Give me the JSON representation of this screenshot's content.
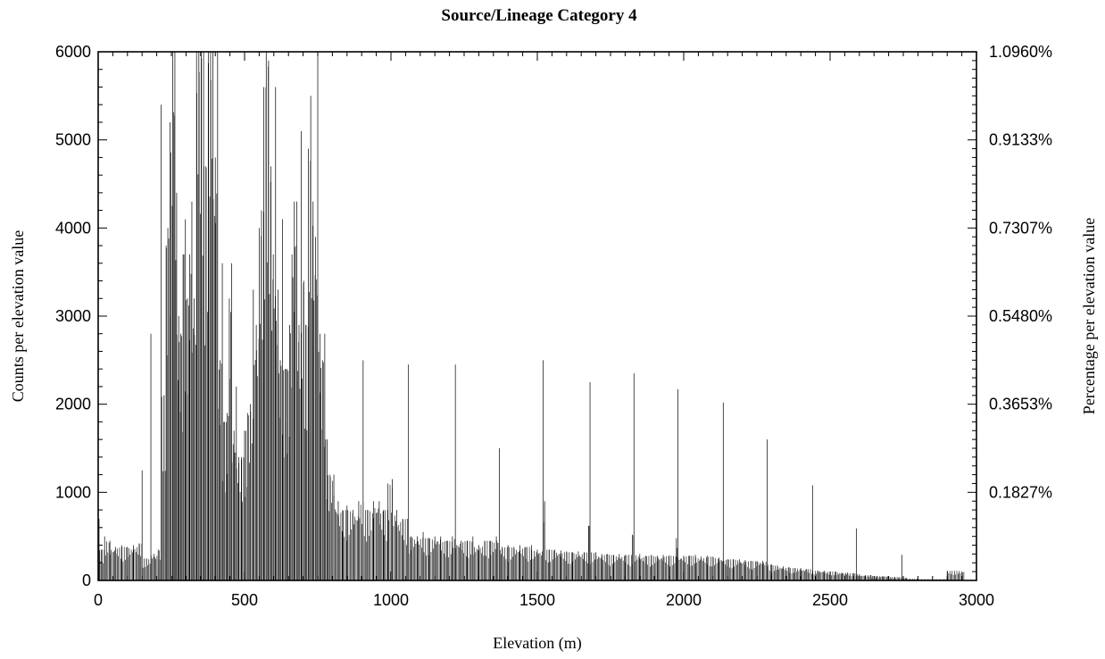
{
  "chart_data": {
    "type": "bar",
    "title": "Source/Lineage Category 4",
    "xlabel": "Elevation (m)",
    "ylabel": "Counts per elevation value",
    "y2label": "Percentage per elevation value",
    "xlim": [
      0,
      3000
    ],
    "ylim": [
      0,
      6000
    ],
    "x_ticks": [
      "0",
      "500",
      "1000",
      "1500",
      "2000",
      "2500",
      "3000"
    ],
    "y_ticks": [
      "0",
      "1000",
      "2000",
      "3000",
      "4000",
      "5000",
      "6000"
    ],
    "y2_ticks": [
      "0.1827%",
      "0.3653%",
      "0.5480%",
      "0.7307%",
      "0.9133%",
      "1.0960%"
    ],
    "grid": false,
    "legend": "none",
    "bar_color": "#000000",
    "note": "Approximate histogram: counts per 1 m elevation value, only salient bars listed, remaining low background bars summarised",
    "series": [
      {
        "values": [
          [
            3,
            700
          ],
          [
            10,
            350
          ],
          [
            22,
            500
          ],
          [
            40,
            450
          ],
          [
            60,
            380
          ],
          [
            80,
            400
          ],
          [
            100,
            380
          ],
          [
            120,
            400
          ],
          [
            140,
            420
          ],
          [
            150,
            1250
          ],
          [
            165,
            250
          ],
          [
            180,
            2800
          ],
          [
            190,
            300
          ],
          [
            205,
            350
          ],
          [
            215,
            5400
          ],
          [
            225,
            2100
          ],
          [
            232,
            3800
          ],
          [
            238,
            4000
          ],
          [
            245,
            5200
          ],
          [
            255,
            6000
          ],
          [
            262,
            6000
          ],
          [
            268,
            4400
          ],
          [
            275,
            3000
          ],
          [
            282,
            2800
          ],
          [
            290,
            3700
          ],
          [
            298,
            4100
          ],
          [
            305,
            3200
          ],
          [
            312,
            3700
          ],
          [
            320,
            4300
          ],
          [
            328,
            3200
          ],
          [
            336,
            6000
          ],
          [
            344,
            6000
          ],
          [
            352,
            6000
          ],
          [
            360,
            6000
          ],
          [
            368,
            4700
          ],
          [
            376,
            6000
          ],
          [
            384,
            6000
          ],
          [
            392,
            6000
          ],
          [
            400,
            4800
          ],
          [
            408,
            6000
          ],
          [
            416,
            2500
          ],
          [
            424,
            3600
          ],
          [
            432,
            1800
          ],
          [
            440,
            1900
          ],
          [
            448,
            3200
          ],
          [
            456,
            3600
          ],
          [
            464,
            1700
          ],
          [
            472,
            2200
          ],
          [
            480,
            1400
          ],
          [
            490,
            1400
          ],
          [
            500,
            1700
          ],
          [
            510,
            1900
          ],
          [
            520,
            2000
          ],
          [
            530,
            3300
          ],
          [
            540,
            2900
          ],
          [
            550,
            4000
          ],
          [
            558,
            4200
          ],
          [
            566,
            5600
          ],
          [
            574,
            6000
          ],
          [
            582,
            5900
          ],
          [
            590,
            4700
          ],
          [
            598,
            3700
          ],
          [
            606,
            5600
          ],
          [
            614,
            3300
          ],
          [
            622,
            2500
          ],
          [
            630,
            4100
          ],
          [
            638,
            2400
          ],
          [
            646,
            2400
          ],
          [
            654,
            2900
          ],
          [
            662,
            3700
          ],
          [
            670,
            4300
          ],
          [
            678,
            4300
          ],
          [
            686,
            2900
          ],
          [
            694,
            5100
          ],
          [
            702,
            3400
          ],
          [
            710,
            2900
          ],
          [
            718,
            4900
          ],
          [
            726,
            5500
          ],
          [
            734,
            4300
          ],
          [
            742,
            3900
          ],
          [
            750,
            6000
          ],
          [
            758,
            2800
          ],
          [
            766,
            2500
          ],
          [
            774,
            2800
          ],
          [
            782,
            1600
          ],
          [
            792,
            1200
          ],
          [
            805,
            1200
          ],
          [
            820,
            900
          ],
          [
            835,
            800
          ],
          [
            850,
            850
          ],
          [
            870,
            800
          ],
          [
            890,
            900
          ],
          [
            905,
            2500
          ],
          [
            920,
            800
          ],
          [
            940,
            900
          ],
          [
            960,
            900
          ],
          [
            975,
            800
          ],
          [
            990,
            1100
          ],
          [
            1005,
            1150
          ],
          [
            1020,
            800
          ],
          [
            1040,
            700
          ],
          [
            1060,
            2450
          ],
          [
            1070,
            500
          ],
          [
            1090,
            500
          ],
          [
            1110,
            550
          ],
          [
            1130,
            480
          ],
          [
            1150,
            500
          ],
          [
            1170,
            500
          ],
          [
            1190,
            450
          ],
          [
            1210,
            500
          ],
          [
            1220,
            2450
          ],
          [
            1240,
            450
          ],
          [
            1260,
            450
          ],
          [
            1280,
            500
          ],
          [
            1300,
            400
          ],
          [
            1320,
            450
          ],
          [
            1340,
            450
          ],
          [
            1360,
            500
          ],
          [
            1370,
            1500
          ],
          [
            1380,
            380
          ],
          [
            1400,
            400
          ],
          [
            1420,
            380
          ],
          [
            1440,
            400
          ],
          [
            1460,
            380
          ],
          [
            1480,
            400
          ],
          [
            1500,
            350
          ],
          [
            1520,
            2500
          ],
          [
            1525,
            900
          ],
          [
            1540,
            350
          ],
          [
            1560,
            350
          ],
          [
            1580,
            340
          ],
          [
            1600,
            330
          ],
          [
            1620,
            320
          ],
          [
            1640,
            330
          ],
          [
            1660,
            320
          ],
          [
            1675,
            620
          ],
          [
            1680,
            2250
          ],
          [
            1700,
            320
          ],
          [
            1720,
            300
          ],
          [
            1740,
            300
          ],
          [
            1760,
            290
          ],
          [
            1780,
            300
          ],
          [
            1800,
            290
          ],
          [
            1825,
            520
          ],
          [
            1830,
            2350
          ],
          [
            1850,
            300
          ],
          [
            1870,
            280
          ],
          [
            1890,
            290
          ],
          [
            1910,
            280
          ],
          [
            1930,
            290
          ],
          [
            1950,
            280
          ],
          [
            1975,
            480
          ],
          [
            1980,
            2170
          ],
          [
            2000,
            280
          ],
          [
            2020,
            280
          ],
          [
            2040,
            290
          ],
          [
            2060,
            270
          ],
          [
            2080,
            280
          ],
          [
            2100,
            270
          ],
          [
            2120,
            260
          ],
          [
            2135,
            2020
          ],
          [
            2150,
            240
          ],
          [
            2170,
            240
          ],
          [
            2190,
            240
          ],
          [
            2210,
            230
          ],
          [
            2230,
            220
          ],
          [
            2250,
            220
          ],
          [
            2270,
            220
          ],
          [
            2285,
            1600
          ],
          [
            2300,
            180
          ],
          [
            2320,
            170
          ],
          [
            2340,
            160
          ],
          [
            2360,
            150
          ],
          [
            2380,
            140
          ],
          [
            2400,
            140
          ],
          [
            2420,
            130
          ],
          [
            2440,
            1080
          ],
          [
            2460,
            110
          ],
          [
            2480,
            110
          ],
          [
            2500,
            100
          ],
          [
            2520,
            100
          ],
          [
            2540,
            90
          ],
          [
            2560,
            90
          ],
          [
            2580,
            80
          ],
          [
            2590,
            590
          ],
          [
            2600,
            70
          ],
          [
            2620,
            60
          ],
          [
            2640,
            60
          ],
          [
            2660,
            50
          ],
          [
            2680,
            50
          ],
          [
            2700,
            50
          ],
          [
            2720,
            40
          ],
          [
            2745,
            290
          ],
          [
            2760,
            30
          ],
          [
            2800,
            20
          ],
          [
            2850,
            15
          ],
          [
            2900,
            110
          ]
        ]
      }
    ]
  }
}
